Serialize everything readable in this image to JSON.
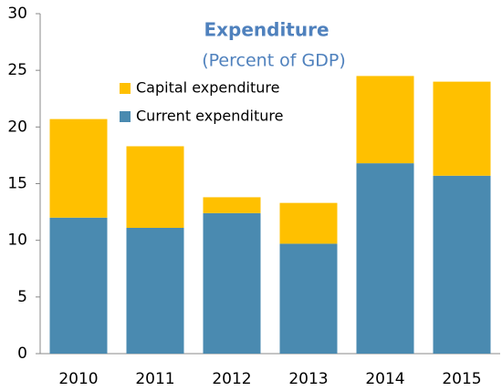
{
  "chart_data": {
    "type": "stacked_bar",
    "title": "Expenditure",
    "subtitle": "(Percent of GDP)",
    "categories": [
      "2010",
      "2011",
      "2012",
      "2013",
      "2014",
      "2015"
    ],
    "series": [
      {
        "name": "Current expenditure",
        "color": "#4a8ab0",
        "values": [
          12.0,
          11.1,
          12.4,
          9.7,
          16.8,
          15.7
        ]
      },
      {
        "name": "Capital expenditure",
        "color": "#ffc000",
        "values": [
          8.7,
          7.2,
          1.4,
          3.6,
          7.7,
          8.3
        ]
      }
    ],
    "ylim": [
      0,
      30
    ],
    "yticks": [
      0,
      5,
      10,
      15,
      20,
      25,
      30
    ],
    "grid": false,
    "legend": "top-left"
  }
}
